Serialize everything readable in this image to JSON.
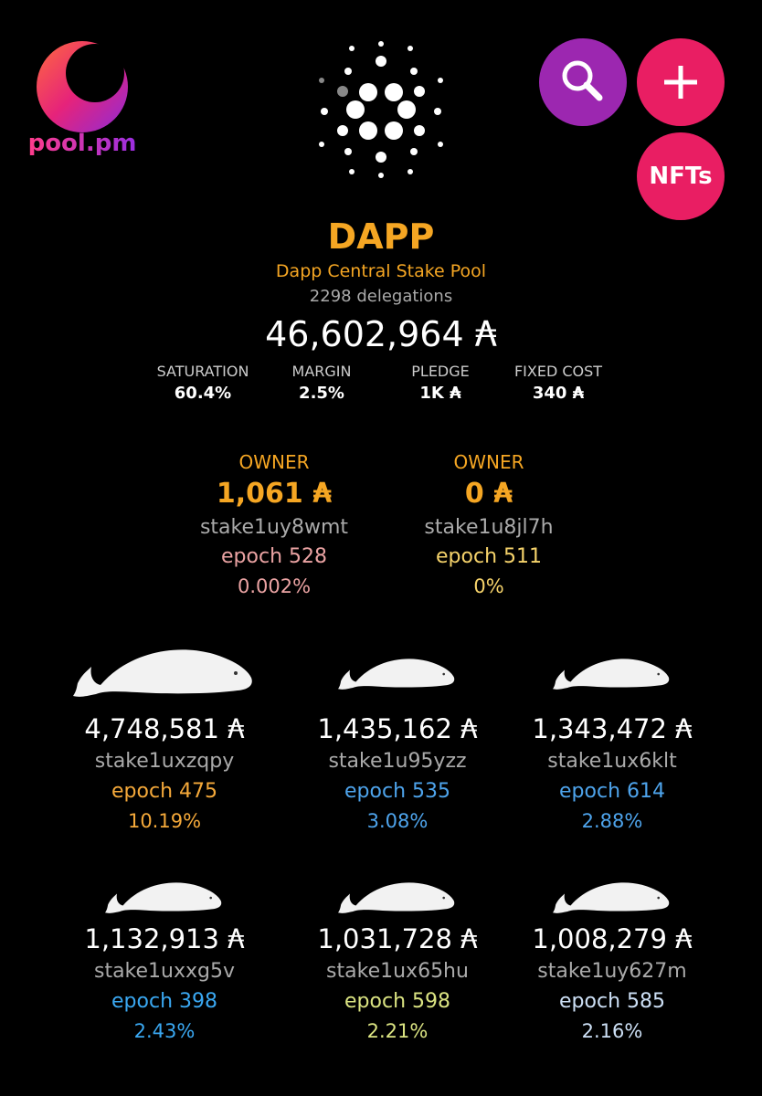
{
  "header": {
    "logo_text": "pool.pm",
    "nfts_button": "NFTs"
  },
  "pool": {
    "ticker": "DAPP",
    "name": "Dapp Central Stake Pool",
    "delegations": "2298 delegations",
    "total": "46,602,964 ₳",
    "stats": [
      {
        "label": "SATURATION",
        "value": "60.4%"
      },
      {
        "label": "MARGIN",
        "value": "2.5%"
      },
      {
        "label": "PLEDGE",
        "value": "1K ₳"
      },
      {
        "label": "FIXED COST",
        "value": "340 ₳"
      }
    ]
  },
  "owners": [
    {
      "label": "OWNER",
      "amount": "1,061 ₳",
      "address": "stake1uy8wmt",
      "epoch": "epoch 528",
      "share": "0.002%",
      "color": "#eba3a3"
    },
    {
      "label": "OWNER",
      "amount": "0 ₳",
      "address": "stake1u8jl7h",
      "epoch": "epoch 511",
      "share": "0%",
      "color": "#f6d36b"
    }
  ],
  "delegators": [
    {
      "amount": "4,748,581 ₳",
      "address": "stake1uxzqpy",
      "epoch": "epoch 475",
      "share": "10.19%",
      "color": "#f5a93a"
    },
    {
      "amount": "1,435,162 ₳",
      "address": "stake1u95yzz",
      "epoch": "epoch 535",
      "share": "3.08%",
      "color": "#4ea4ec"
    },
    {
      "amount": "1,343,472 ₳",
      "address": "stake1ux6klt",
      "epoch": "epoch 614",
      "share": "2.88%",
      "color": "#4ea4ec"
    },
    {
      "amount": "1,132,913 ₳",
      "address": "stake1uxxg5v",
      "epoch": "epoch 398",
      "share": "2.43%",
      "color": "#3aa8f2"
    },
    {
      "amount": "1,031,728 ₳",
      "address": "stake1ux65hu",
      "epoch": "epoch 598",
      "share": "2.21%",
      "color": "#dbe482"
    },
    {
      "amount": "1,008,279 ₳",
      "address": "stake1uy627m",
      "epoch": "epoch 585",
      "share": "2.16%",
      "color": "#cde0f6"
    }
  ]
}
